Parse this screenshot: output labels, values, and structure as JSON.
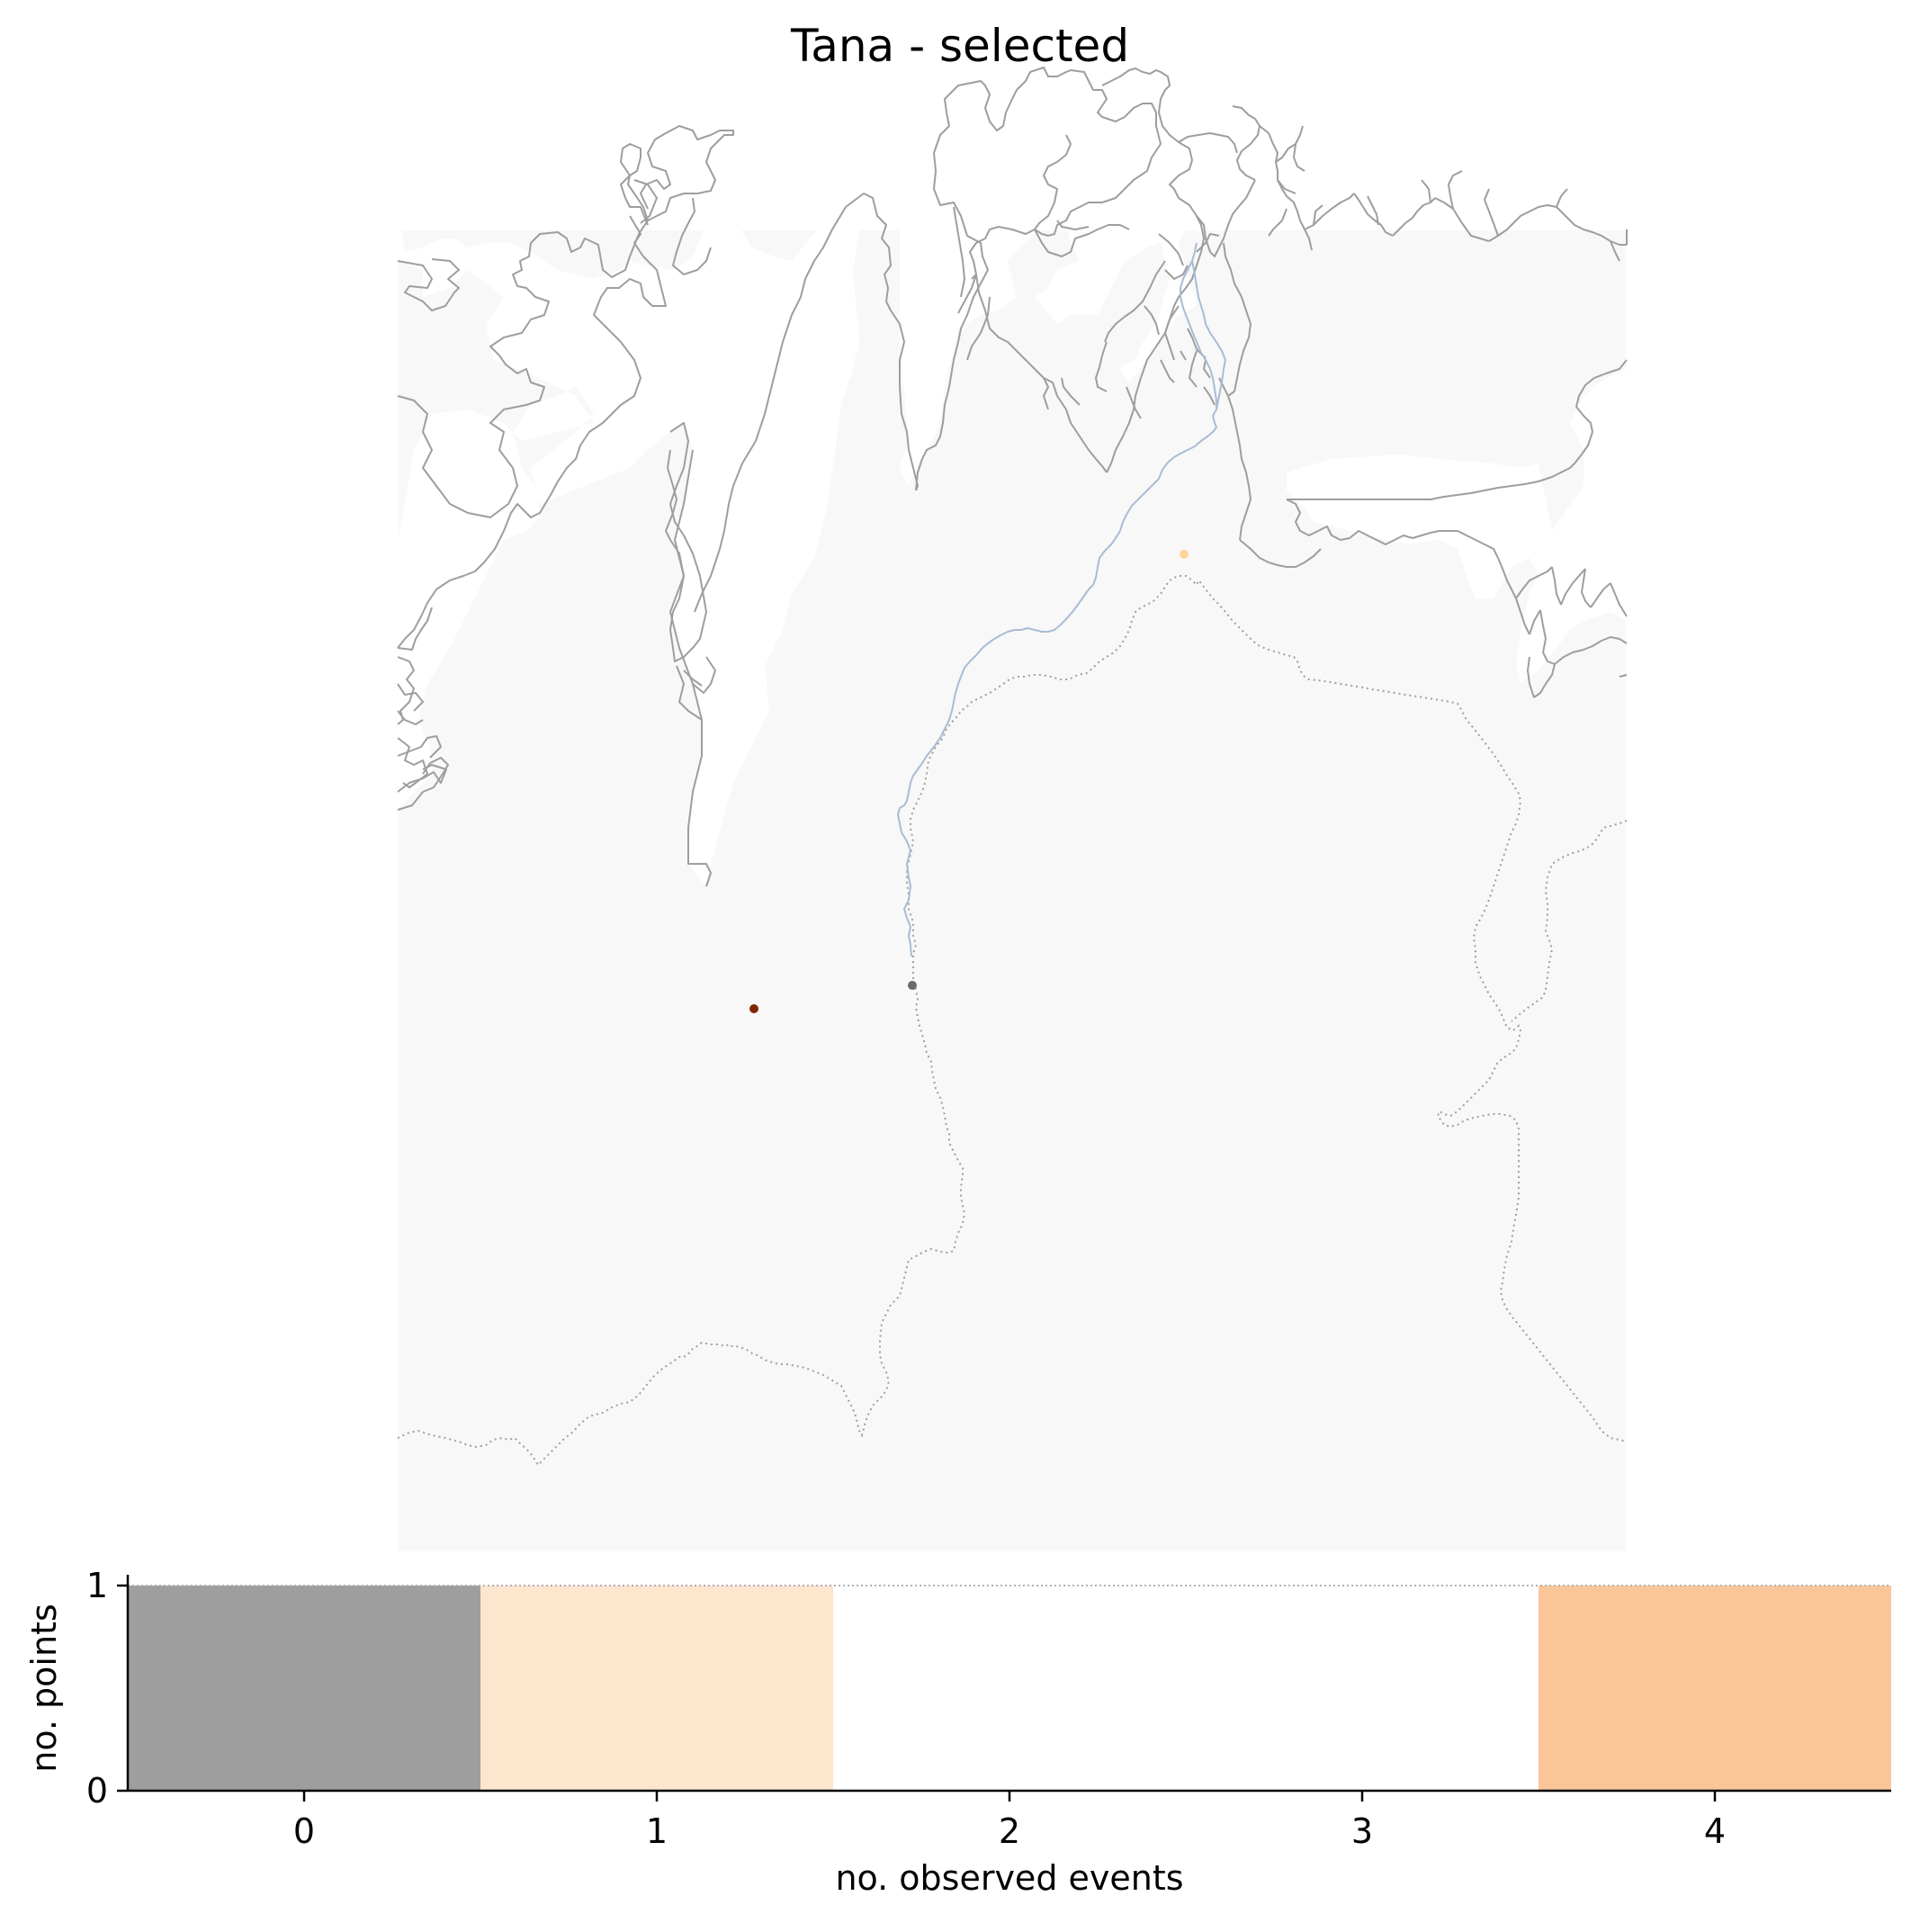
{
  "title": "Tana - selected",
  "map": {
    "land_color": "#f8f8f8",
    "coast_color": "#9e9e9e",
    "river_color": "#a8bcd6",
    "border_color": "#9e9e9e",
    "points": [
      {
        "name": "point-orange",
        "color": "#fdd49e"
      },
      {
        "name": "point-gray",
        "color": "#6b6b6b"
      },
      {
        "name": "point-brown",
        "color": "#7f2704"
      }
    ]
  },
  "chart_data": {
    "type": "bar",
    "categories": [
      "0",
      "1",
      "2",
      "3",
      "4"
    ],
    "values": [
      1,
      1,
      0,
      0,
      1
    ],
    "colors": [
      "#9e9e9e",
      "#fde5ce",
      "#ffffff",
      "#ffffff",
      "#fbc59a"
    ],
    "xlabel": "no. observed events",
    "ylabel": "no. points",
    "yticks": [
      "0",
      "1"
    ],
    "ylim": [
      0,
      1
    ],
    "xlim": [
      -0.5,
      4.5
    ],
    "grid": false
  }
}
